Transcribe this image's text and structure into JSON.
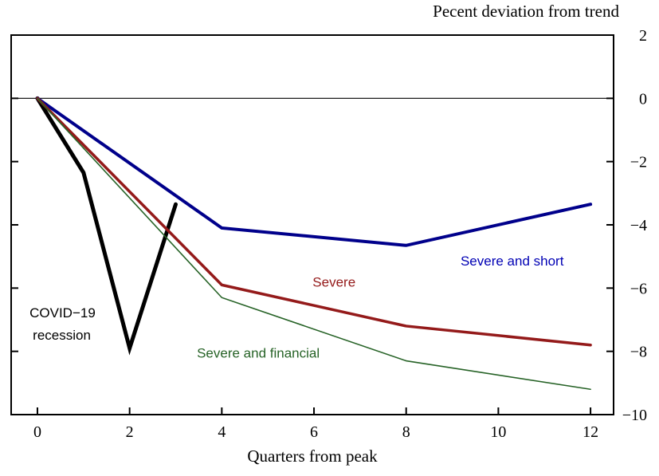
{
  "header": {
    "title": "Pecent deviation from trend"
  },
  "axes": {
    "xlabel": "Quarters from peak",
    "x_tick_labels": [
      "0",
      "2",
      "4",
      "6",
      "8",
      "10",
      "12"
    ],
    "y_tick_labels": [
      "2",
      "0",
      "−2",
      "−4",
      "−6",
      "−8",
      "−10"
    ]
  },
  "chart_data": {
    "type": "line",
    "title": "Pecent deviation from trend",
    "xlabel": "Quarters from peak",
    "ylabel": "Pecent deviation from trend",
    "xlim": [
      -0.57,
      12.5
    ],
    "ylim": [
      -10,
      2
    ],
    "x_ticks": [
      0,
      2,
      4,
      6,
      8,
      10,
      12
    ],
    "y_ticks": [
      2,
      0,
      -2,
      -4,
      -6,
      -8,
      -10
    ],
    "y_tick_side": "right",
    "zero_line": true,
    "grid": false,
    "legend_position": "inline-labels",
    "series": [
      {
        "name": "COVID-19 recession",
        "color": "#000000",
        "stroke_width": 5,
        "x": [
          0,
          1,
          2,
          3
        ],
        "y": [
          0,
          -2.35,
          -7.9,
          -3.35
        ]
      },
      {
        "name": "Severe and short",
        "color": "#00008b",
        "stroke_width": 4,
        "x": [
          0,
          4,
          8,
          12
        ],
        "y": [
          0,
          -4.1,
          -4.65,
          -3.35
        ]
      },
      {
        "name": "Severe",
        "color": "#941a1a",
        "stroke_width": 3.5,
        "x": [
          0,
          4,
          8,
          12
        ],
        "y": [
          0,
          -5.9,
          -7.2,
          -7.8
        ]
      },
      {
        "name": "Severe and financial",
        "color": "#276327",
        "stroke_width": 1.6,
        "x": [
          0,
          4,
          8,
          12
        ],
        "y": [
          0,
          -6.3,
          -8.3,
          -9.2
        ]
      }
    ],
    "annotations": [
      {
        "text": "COVID−19",
        "x": -0.17,
        "y": -6.93,
        "color": "#000000",
        "anchor": "start"
      },
      {
        "text": "recession",
        "x": -0.1,
        "y": -7.63,
        "color": "#000000",
        "anchor": "start"
      },
      {
        "text": "Severe",
        "x": 5.97,
        "y": -5.95,
        "color": "#941a1a",
        "anchor": "start"
      },
      {
        "text": "Severe and short",
        "x": 9.18,
        "y": -5.28,
        "color": "#0000b4",
        "anchor": "start"
      },
      {
        "text": "Severe and financial",
        "x": 3.46,
        "y": -8.2,
        "color": "#276327",
        "anchor": "start"
      }
    ]
  }
}
